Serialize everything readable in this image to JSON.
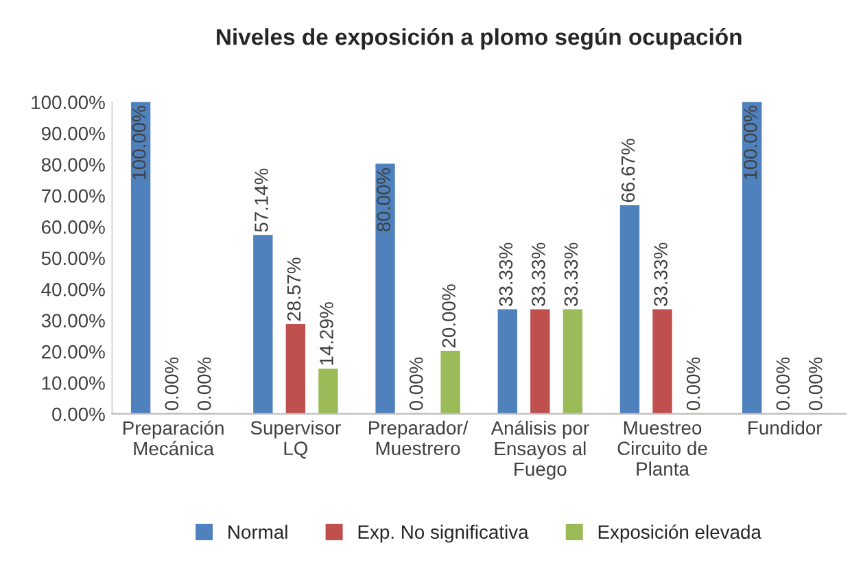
{
  "chart_data": {
    "type": "bar",
    "title": "Niveles de exposición a plomo según ocupación",
    "categories": [
      "Preparación Mecánica",
      "Supervisor LQ",
      "Preparador/ Muestrero",
      "Análisis por Ensayos al Fuego",
      "Muestreo Circuito de Planta",
      "Fundidor"
    ],
    "series": [
      {
        "name": "Normal",
        "color": "#4f81bd",
        "values": [
          100,
          57.14,
          80,
          33.33,
          66.67,
          100
        ],
        "value_labels": [
          "100.00%",
          "57.14%",
          "80.00%",
          "33.33%",
          "66.67%",
          "100.00%"
        ]
      },
      {
        "name": "Exp. No significativa",
        "color": "#c0504d",
        "values": [
          0,
          28.57,
          0,
          33.33,
          33.33,
          0
        ],
        "value_labels": [
          "0.00%",
          "28.57%",
          "0.00%",
          "33.33%",
          "33.33%",
          "0.00%"
        ]
      },
      {
        "name": "Exposición elevada",
        "color": "#9bbb59",
        "values": [
          0,
          14.29,
          20,
          33.33,
          0,
          0
        ],
        "value_labels": [
          "0.00%",
          "14.29%",
          "20.00%",
          "33.33%",
          "0.00%",
          "0.00%"
        ]
      }
    ],
    "ylim": [
      0,
      100
    ],
    "yticks": [
      {
        "value": 0,
        "label": "0.00%"
      },
      {
        "value": 10,
        "label": "10.00%"
      },
      {
        "value": 20,
        "label": "20.00%"
      },
      {
        "value": 30,
        "label": "30.00%"
      },
      {
        "value": 40,
        "label": "40.00%"
      },
      {
        "value": 50,
        "label": "50.00%"
      },
      {
        "value": 60,
        "label": "60.00%"
      },
      {
        "value": 70,
        "label": "70.00%"
      },
      {
        "value": 80,
        "label": "80.00%"
      },
      {
        "value": 90,
        "label": "90.00%"
      },
      {
        "value": 100,
        "label": "100.00%"
      }
    ],
    "legend": "bottom",
    "grid": false
  }
}
